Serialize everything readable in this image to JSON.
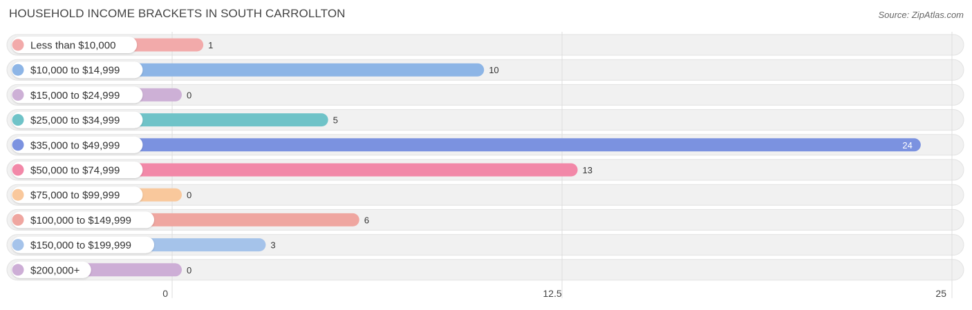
{
  "header": {
    "title": "HOUSEHOLD INCOME BRACKETS IN SOUTH CARROLLTON",
    "source": "Source: ZipAtlas.com"
  },
  "chart_data": {
    "type": "bar",
    "orientation": "horizontal",
    "title": "HOUSEHOLD INCOME BRACKETS IN SOUTH CARROLLTON",
    "categories": [
      "Less than $10,000",
      "$10,000 to $14,999",
      "$15,000 to $24,999",
      "$25,000 to $34,999",
      "$35,000 to $49,999",
      "$50,000 to $74,999",
      "$75,000 to $99,999",
      "$100,000 to $149,999",
      "$150,000 to $199,999",
      "$200,000+"
    ],
    "values": [
      1,
      10,
      0,
      5,
      24,
      13,
      0,
      6,
      3,
      0
    ],
    "colors": [
      "#f2aaaa",
      "#8db5e6",
      "#cdb0d6",
      "#6fc3c8",
      "#7b92e0",
      "#f288a8",
      "#f9c89c",
      "#efa6a0",
      "#a5c3ea",
      "#cdaed6"
    ],
    "xlim": [
      0,
      25
    ],
    "xticks": [
      "0",
      "12.5",
      "25"
    ],
    "xtick_values": [
      0,
      12.5,
      25
    ],
    "grid": true
  }
}
